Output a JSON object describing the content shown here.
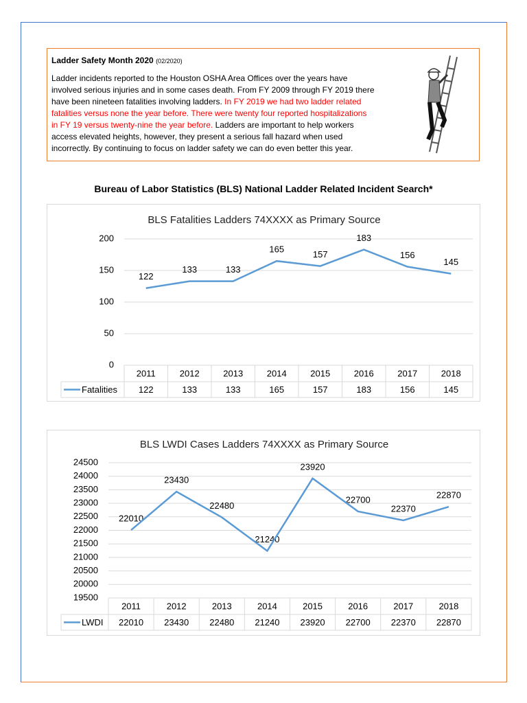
{
  "notice": {
    "title": "Ladder Safety Month 2020",
    "date": "(02/2020)",
    "lines": [
      [
        {
          "text": "Ladder incidents reported to the Houston OSHA Area Offices over the years have"
        }
      ],
      [
        {
          "text": "involved serious injuries and in some cases death. From FY 2009 through FY 2019 there"
        }
      ],
      [
        {
          "text": "have been nineteen fatalities involving ladders. "
        },
        {
          "text": "In FY 2019 we had two ladder related",
          "color": "#ff0000"
        }
      ],
      [
        {
          "text": "fatalities versus none the year before. There were twenty four reported hospitalizations",
          "color": "#ff0000"
        }
      ],
      [
        {
          "text": "in FY 19 versus twenty-nine the year before.",
          "color": "#ff0000"
        },
        {
          "text": " Ladders are important to help workers"
        }
      ],
      [
        {
          "text": "access elevated heights, however, they present a serious fall hazard when used"
        }
      ],
      [
        {
          "text": "incorrectly. By continuing to focus on ladder safety we can do even better this year."
        }
      ]
    ]
  },
  "section_title": "Bureau of Labor Statistics (BLS) National Ladder Related Incident Search*",
  "chart_data": [
    {
      "type": "line",
      "title": "BLS Fatalities Ladders 74XXXX as Primary Source",
      "categories": [
        "2011",
        "2012",
        "2013",
        "2014",
        "2015",
        "2016",
        "2017",
        "2018"
      ],
      "series": [
        {
          "name": "Fatalities",
          "color": "#5b9bd5",
          "values": [
            122,
            133,
            133,
            165,
            157,
            183,
            156,
            145
          ]
        }
      ],
      "ylim": [
        0,
        200
      ],
      "yticks": [
        0,
        50,
        100,
        150,
        200
      ],
      "grid": true,
      "data_labels": true,
      "data_table": true
    },
    {
      "type": "line",
      "title": "BLS LWDI Cases Ladders 74XXXX as Primary Source",
      "categories": [
        "2011",
        "2012",
        "2013",
        "2014",
        "2015",
        "2016",
        "2017",
        "2018"
      ],
      "series": [
        {
          "name": "LWDI",
          "color": "#5b9bd5",
          "values": [
            22010,
            23430,
            22480,
            21240,
            23920,
            22700,
            22370,
            22870
          ]
        }
      ],
      "ylim": [
        19500,
        24500
      ],
      "yticks": [
        19500,
        20000,
        20500,
        21000,
        21500,
        22000,
        22500,
        23000,
        23500,
        24000,
        24500
      ],
      "grid": true,
      "data_labels": true,
      "data_table": true
    }
  ]
}
